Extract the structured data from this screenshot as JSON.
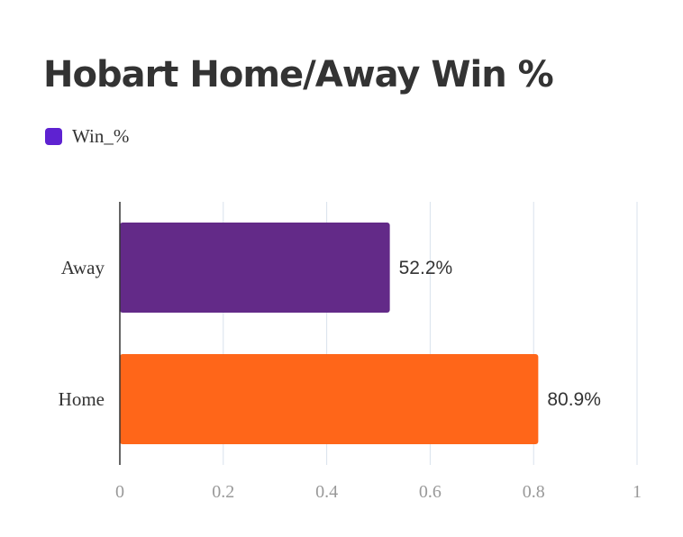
{
  "chart_data": {
    "type": "bar",
    "orientation": "horizontal",
    "title": "Hobart Home/Away Win %",
    "categories": [
      "Away",
      "Home"
    ],
    "series": [
      {
        "name": "Win_%",
        "values": [
          0.522,
          0.809
        ],
        "value_labels": [
          "52.2%",
          "80.9%"
        ],
        "colors": [
          "#632a88",
          "#ff6619"
        ]
      }
    ],
    "legend": {
      "position": "top-left",
      "swatch_color": "#5e22d1"
    },
    "xlim": [
      0,
      1
    ],
    "xticks": [
      "0",
      "0.2",
      "0.4",
      "0.6",
      "0.8",
      "1"
    ],
    "grid": true,
    "xlabel": "",
    "ylabel": ""
  }
}
